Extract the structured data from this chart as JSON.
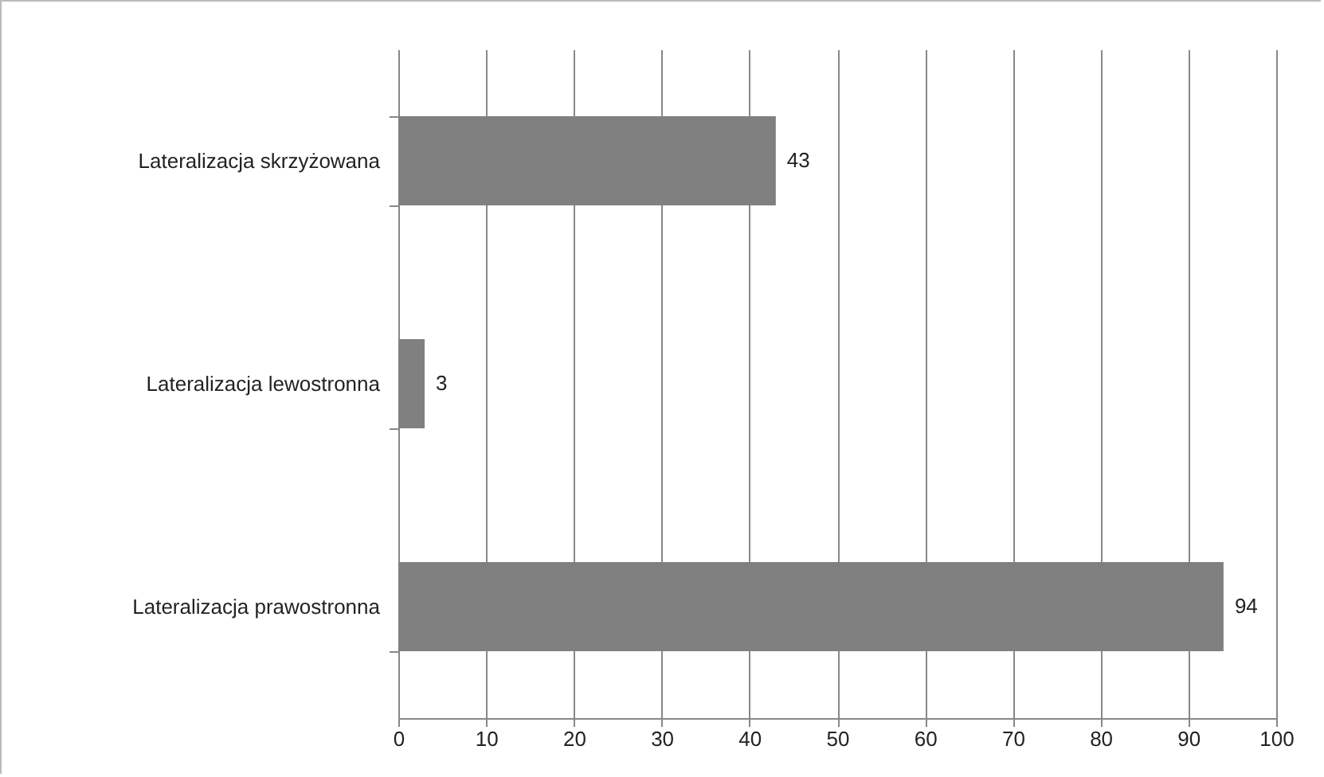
{
  "chart_data": {
    "type": "bar",
    "orientation": "horizontal",
    "categories": [
      "Lateralizacja skrzyżowana",
      "Lateralizacja lewostronna",
      "Lateralizacja prawostronna"
    ],
    "values": [
      43,
      3,
      94
    ],
    "color": "#808080",
    "xlim": [
      0,
      100
    ],
    "xticks": [
      0,
      10,
      20,
      30,
      40,
      50,
      60,
      70,
      80,
      90,
      100
    ],
    "grid": "x",
    "data_labels": true
  }
}
